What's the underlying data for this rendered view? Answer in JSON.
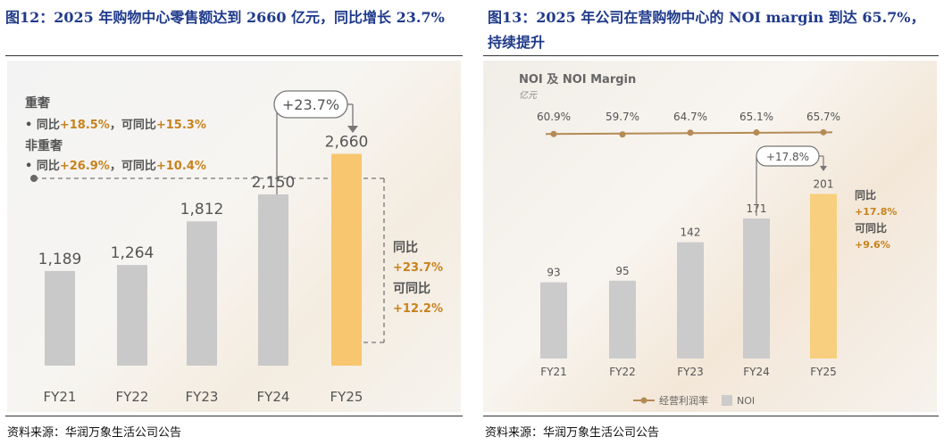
{
  "left": {
    "title": "图12：2025 年购物中心零售额达到 2660 亿元，同比增长 23.7%",
    "source": "资料来源：华润万象生活公司公告",
    "notes": {
      "group1_title": "重奢",
      "group1_line_prefix": "• 同比",
      "group1_yoy": "+18.5%",
      "group1_mid": "，可同比",
      "group1_lfl": "+15.3%",
      "group2_title": "非重奢",
      "group2_line_prefix": "• 同比",
      "group2_yoy": "+26.9%",
      "group2_mid": "，可同比",
      "group2_lfl": "+10.4%"
    },
    "growth_bubble": "+23.7%",
    "side": {
      "yoy_label": "同比",
      "yoy_value": "+23.7%",
      "lfl_label": "可同比",
      "lfl_value": "+12.2%"
    },
    "colors": {
      "bar_gray": "#c9c9c9",
      "bar_highlight": "#f8c66f",
      "accent_text": "#c8821d",
      "label": "#555555"
    }
  },
  "right": {
    "title": "图13：2025 年公司在营购物中心的 NOI margin 到达 65.7%，持续提升",
    "source": "资料来源：华润万象生活公司公告",
    "header": "NOI 及 NOI Margin",
    "unit": "亿元",
    "growth_bubble": "+17.8%",
    "side": {
      "yoy_label": "同比",
      "yoy_value": "+17.8%",
      "lfl_label": "可同比",
      "lfl_value": "+9.6%"
    },
    "legend_line": "经营利润率",
    "legend_bar": "NOI",
    "colors": {
      "bar_gray": "#cbcbcb",
      "bar_highlight": "#f8cf7e",
      "line": "#b58a55",
      "accent_text": "#c8821d"
    }
  },
  "chart_data": [
    {
      "type": "bar",
      "categories": [
        "FY21",
        "FY22",
        "FY23",
        "FY24",
        "FY25"
      ],
      "values": [
        1189,
        1264,
        1812,
        2150,
        2660
      ],
      "value_labels": [
        "1,189",
        "1,264",
        "1,812",
        "2,150",
        "2,660"
      ],
      "highlight_index": 4,
      "title": "",
      "xlabel": "",
      "ylabel": "",
      "ylim": [
        0,
        2800
      ],
      "grid": false
    },
    {
      "type": "bar",
      "categories": [
        "FY21",
        "FY22",
        "FY23",
        "FY24",
        "FY25"
      ],
      "series": [
        {
          "name": "NOI",
          "type": "bar",
          "values": [
            93,
            95,
            142,
            171,
            201
          ]
        },
        {
          "name": "经营利润率",
          "type": "line",
          "values": [
            60.9,
            59.7,
            64.7,
            65.1,
            65.7
          ],
          "value_labels": [
            "60.9%",
            "59.7%",
            "64.7%",
            "65.1%",
            "65.7%"
          ]
        }
      ],
      "highlight_index": 4,
      "title": "NOI 及 NOI Margin",
      "ylabel": "亿元",
      "ylim": [
        0,
        220
      ],
      "legend": "bottom",
      "grid": false
    }
  ]
}
